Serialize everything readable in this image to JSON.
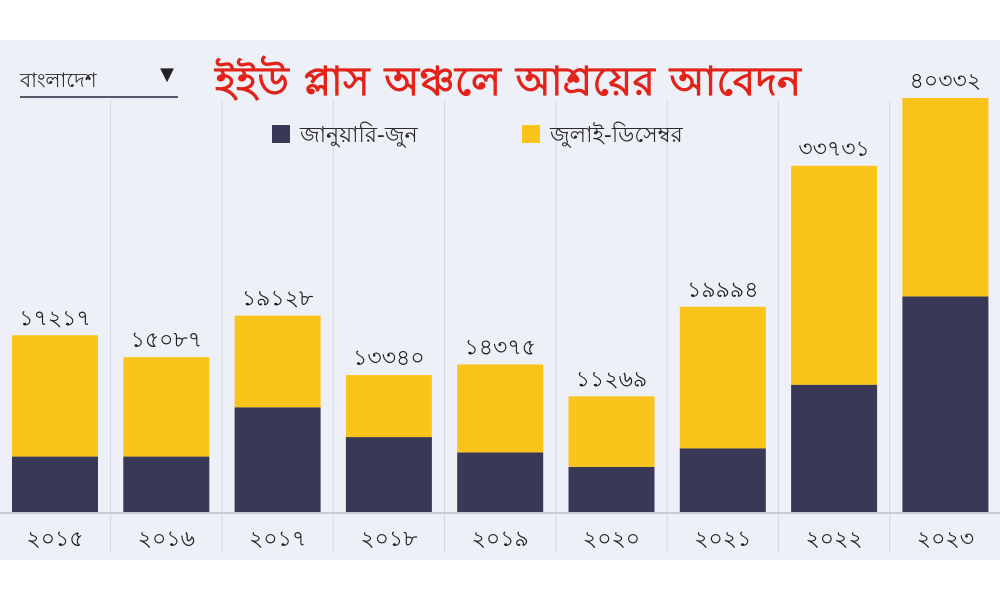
{
  "header": {
    "country_select": "বাংলাদেশ",
    "title": "ইইউ প্লাস অঞ্চলে আশ্রয়ের আবেদন"
  },
  "chart_data": {
    "type": "bar",
    "stacked": true,
    "title": "ইইউ প্লাস অঞ্চলে আশ্রয়ের আবেদন",
    "categories": [
      "২০১৫",
      "২০১৬",
      "২০১৭",
      "২০১৮",
      "২০১৯",
      "২০২০",
      "২০২১",
      "২০২২",
      "২০২৩"
    ],
    "totals_labels": [
      "১৭২১৭",
      "১৫০৮৭",
      "১৯১২৮",
      "১৩৩৪০",
      "১৪৩৭৫",
      "১১২৬৯",
      "১৯৯৯৪",
      "৩৩৭৩১",
      "৪০৩৩২"
    ],
    "series": [
      {
        "name": "জানুয়ারি-জুন",
        "color": "#393856",
        "values": [
          5400,
          5400,
          10200,
          7300,
          5800,
          4400,
          6200,
          12400,
          21000
        ]
      },
      {
        "name": "জুলাই-ডিসেম্বর",
        "color": "#fbc41a",
        "values": [
          11817,
          9687,
          8928,
          6040,
          8575,
          6869,
          13794,
          21331,
          19332
        ]
      }
    ],
    "totals": [
      17217,
      15087,
      19128,
      13340,
      14375,
      11269,
      19994,
      33731,
      40332
    ],
    "ylim": [
      0,
      40332
    ],
    "legend_position": "top-center"
  }
}
